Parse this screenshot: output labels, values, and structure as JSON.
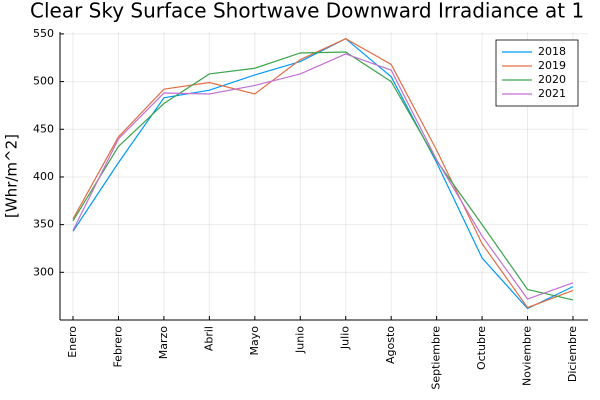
{
  "chart_data": {
    "type": "line",
    "title": "Clear Sky Surface Shortwave Downward Irradiance at 1",
    "y_label": "[Whr/m^2]",
    "categories": [
      "Enero",
      "Febrero",
      "Marzo",
      "Abril",
      "Mayo",
      "Junio",
      "Julio",
      "Agosto",
      "Septiembre",
      "Octubre",
      "Noviembre",
      "Diciembre"
    ],
    "series": [
      {
        "name": "2018",
        "color": "#009af9",
        "values": [
          343,
          415,
          483,
          491,
          507,
          521,
          545,
          505,
          415,
          315,
          262,
          285
        ]
      },
      {
        "name": "2019",
        "color": "#e26f46",
        "values": [
          356,
          442,
          492,
          499,
          487,
          523,
          545,
          518,
          428,
          330,
          263,
          281
        ]
      },
      {
        "name": "2020",
        "color": "#3da44d",
        "values": [
          354,
          432,
          477,
          508,
          514,
          530,
          531,
          500,
          417,
          350,
          282,
          271
        ]
      },
      {
        "name": "2021",
        "color": "#c271d2",
        "values": [
          344,
          440,
          488,
          487,
          496,
          508,
          529,
          512,
          418,
          338,
          272,
          289
        ]
      }
    ],
    "ylim": [
      250,
      552
    ],
    "yticks": [
      300,
      350,
      400,
      450,
      500,
      550
    ],
    "grid": true,
    "legend": "top-right"
  }
}
